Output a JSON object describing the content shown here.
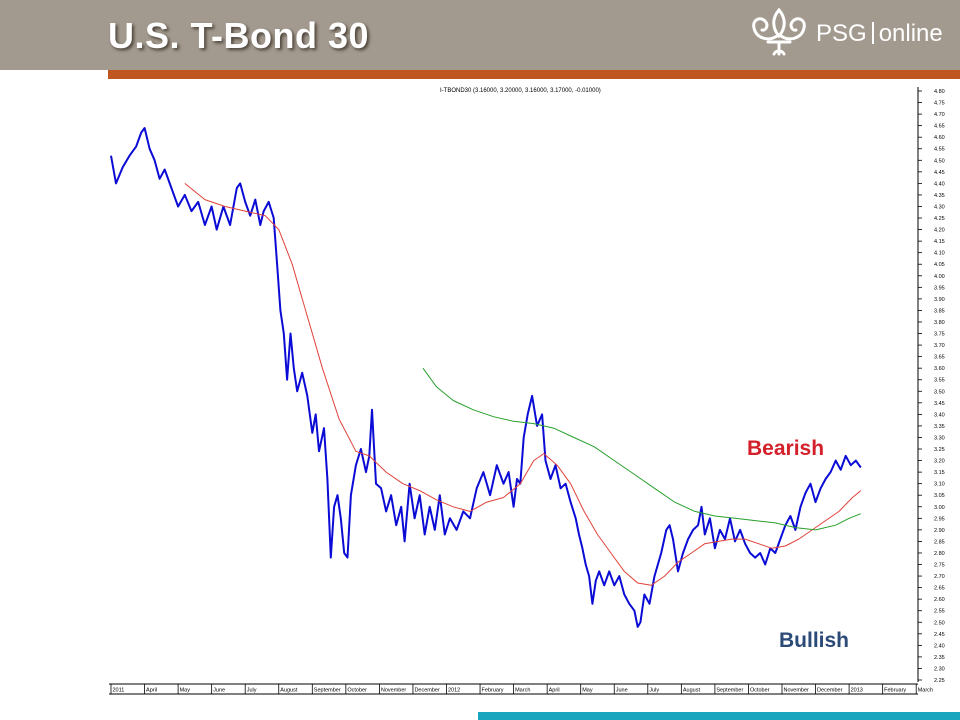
{
  "header": {
    "title": "U.S. T-Bond 30"
  },
  "logo": {
    "brand": "PSG",
    "suffix": "online"
  },
  "chart_header": "I-TBOND30 (3.16000, 3.20000, 3.16000, 3.17000, -0.01000)",
  "annotations": {
    "bearish": "Bearish",
    "bullish": "Bullish"
  },
  "colors": {
    "header_bg": "#a39a8f",
    "accent_line": "#c0561f",
    "price": "#0b0bd6",
    "ma_short": "#e0413a",
    "ma_long": "#27a02b",
    "bearish": "#d4202a",
    "bullish": "#2b4a78",
    "bottom_bar": "#1aa5be"
  },
  "chart_data": {
    "type": "line",
    "title": "I-TBOND30",
    "xlabel": "",
    "ylabel": "",
    "ylim": [
      2.25,
      4.8
    ],
    "y_ticks": [
      "4.80",
      "4.75",
      "4.70",
      "4.65",
      "4.60",
      "4.55",
      "4.50",
      "4.45",
      "4.40",
      "4.35",
      "4.30",
      "4.25",
      "4.20",
      "4.15",
      "4.10",
      "4.05",
      "4.00",
      "3.95",
      "3.90",
      "3.85",
      "3.80",
      "3.75",
      "3.70",
      "3.65",
      "3.60",
      "3.55",
      "3.50",
      "3.45",
      "3.40",
      "3.35",
      "3.30",
      "3.25",
      "3.20",
      "3.15",
      "3.10",
      "3.05",
      "3.00",
      "2.95",
      "2.90",
      "2.85",
      "2.80",
      "2.75",
      "2.70",
      "2.65",
      "2.60",
      "2.55",
      "2.50",
      "2.45",
      "2.40",
      "2.35",
      "2.30",
      "2.25"
    ],
    "x_ticks": [
      {
        "label": "2011",
        "m": 0
      },
      {
        "label": "April",
        "m": 1
      },
      {
        "label": "May",
        "m": 2
      },
      {
        "label": "June",
        "m": 3
      },
      {
        "label": "July",
        "m": 4
      },
      {
        "label": "August",
        "m": 5
      },
      {
        "label": "September",
        "m": 6
      },
      {
        "label": "October",
        "m": 7
      },
      {
        "label": "November",
        "m": 8
      },
      {
        "label": "December",
        "m": 9
      },
      {
        "label": "2012",
        "m": 10
      },
      {
        "label": "February",
        "m": 11
      },
      {
        "label": "March",
        "m": 12
      },
      {
        "label": "April",
        "m": 13
      },
      {
        "label": "May",
        "m": 14
      },
      {
        "label": "June",
        "m": 15
      },
      {
        "label": "July",
        "m": 16
      },
      {
        "label": "August",
        "m": 17
      },
      {
        "label": "September",
        "m": 18
      },
      {
        "label": "October",
        "m": 19
      },
      {
        "label": "November",
        "m": 20
      },
      {
        "label": "December",
        "m": 21
      },
      {
        "label": "2013",
        "m": 22
      },
      {
        "label": "February",
        "m": 23
      },
      {
        "label": "March",
        "m": 24
      }
    ],
    "series": [
      {
        "type": "price",
        "points": [
          [
            0,
            4.52
          ],
          [
            0.15,
            4.4
          ],
          [
            0.35,
            4.47
          ],
          [
            0.55,
            4.52
          ],
          [
            0.75,
            4.56
          ],
          [
            0.9,
            4.62
          ],
          [
            1.0,
            4.64
          ],
          [
            1.15,
            4.55
          ],
          [
            1.3,
            4.5
          ],
          [
            1.45,
            4.42
          ],
          [
            1.6,
            4.46
          ],
          [
            1.8,
            4.38
          ],
          [
            2.0,
            4.3
          ],
          [
            2.2,
            4.35
          ],
          [
            2.4,
            4.28
          ],
          [
            2.6,
            4.32
          ],
          [
            2.8,
            4.22
          ],
          [
            3.0,
            4.3
          ],
          [
            3.15,
            4.2
          ],
          [
            3.35,
            4.3
          ],
          [
            3.55,
            4.22
          ],
          [
            3.75,
            4.38
          ],
          [
            3.85,
            4.4
          ],
          [
            4.0,
            4.32
          ],
          [
            4.15,
            4.26
          ],
          [
            4.3,
            4.33
          ],
          [
            4.45,
            4.22
          ],
          [
            4.55,
            4.28
          ],
          [
            4.7,
            4.32
          ],
          [
            4.85,
            4.25
          ],
          [
            4.95,
            4.05
          ],
          [
            5.05,
            3.85
          ],
          [
            5.15,
            3.75
          ],
          [
            5.25,
            3.55
          ],
          [
            5.35,
            3.75
          ],
          [
            5.45,
            3.6
          ],
          [
            5.55,
            3.5
          ],
          [
            5.7,
            3.58
          ],
          [
            5.85,
            3.48
          ],
          [
            6.0,
            3.32
          ],
          [
            6.1,
            3.4
          ],
          [
            6.2,
            3.24
          ],
          [
            6.35,
            3.34
          ],
          [
            6.45,
            3.12
          ],
          [
            6.55,
            2.78
          ],
          [
            6.65,
            3.0
          ],
          [
            6.75,
            3.05
          ],
          [
            6.85,
            2.95
          ],
          [
            6.95,
            2.8
          ],
          [
            7.05,
            2.78
          ],
          [
            7.15,
            3.05
          ],
          [
            7.3,
            3.18
          ],
          [
            7.45,
            3.25
          ],
          [
            7.6,
            3.15
          ],
          [
            7.7,
            3.22
          ],
          [
            7.78,
            3.42
          ],
          [
            7.9,
            3.1
          ],
          [
            8.05,
            3.08
          ],
          [
            8.2,
            2.98
          ],
          [
            8.35,
            3.05
          ],
          [
            8.5,
            2.92
          ],
          [
            8.65,
            3.0
          ],
          [
            8.75,
            2.85
          ],
          [
            8.9,
            3.1
          ],
          [
            9.05,
            2.95
          ],
          [
            9.2,
            3.05
          ],
          [
            9.35,
            2.88
          ],
          [
            9.5,
            3.0
          ],
          [
            9.65,
            2.9
          ],
          [
            9.8,
            3.05
          ],
          [
            9.95,
            2.88
          ],
          [
            10.1,
            2.95
          ],
          [
            10.3,
            2.9
          ],
          [
            10.5,
            2.98
          ],
          [
            10.7,
            2.95
          ],
          [
            10.9,
            3.08
          ],
          [
            11.1,
            3.15
          ],
          [
            11.3,
            3.05
          ],
          [
            11.5,
            3.18
          ],
          [
            11.7,
            3.1
          ],
          [
            11.85,
            3.15
          ],
          [
            12.0,
            3.0
          ],
          [
            12.1,
            3.12
          ],
          [
            12.2,
            3.1
          ],
          [
            12.3,
            3.3
          ],
          [
            12.42,
            3.4
          ],
          [
            12.55,
            3.48
          ],
          [
            12.7,
            3.35
          ],
          [
            12.85,
            3.4
          ],
          [
            12.95,
            3.2
          ],
          [
            13.1,
            3.12
          ],
          [
            13.25,
            3.18
          ],
          [
            13.4,
            3.08
          ],
          [
            13.55,
            3.1
          ],
          [
            13.7,
            3.02
          ],
          [
            13.85,
            2.95
          ],
          [
            13.95,
            2.88
          ],
          [
            14.05,
            2.82
          ],
          [
            14.15,
            2.75
          ],
          [
            14.25,
            2.7
          ],
          [
            14.35,
            2.58
          ],
          [
            14.45,
            2.68
          ],
          [
            14.55,
            2.72
          ],
          [
            14.7,
            2.66
          ],
          [
            14.85,
            2.72
          ],
          [
            15.0,
            2.66
          ],
          [
            15.15,
            2.7
          ],
          [
            15.3,
            2.62
          ],
          [
            15.45,
            2.58
          ],
          [
            15.6,
            2.55
          ],
          [
            15.7,
            2.48
          ],
          [
            15.78,
            2.5
          ],
          [
            15.9,
            2.62
          ],
          [
            16.05,
            2.58
          ],
          [
            16.2,
            2.7
          ],
          [
            16.4,
            2.8
          ],
          [
            16.55,
            2.9
          ],
          [
            16.65,
            2.92
          ],
          [
            16.75,
            2.86
          ],
          [
            16.9,
            2.72
          ],
          [
            17.05,
            2.8
          ],
          [
            17.2,
            2.86
          ],
          [
            17.35,
            2.9
          ],
          [
            17.5,
            2.92
          ],
          [
            17.6,
            3.0
          ],
          [
            17.7,
            2.88
          ],
          [
            17.85,
            2.95
          ],
          [
            18.0,
            2.82
          ],
          [
            18.15,
            2.9
          ],
          [
            18.3,
            2.86
          ],
          [
            18.45,
            2.95
          ],
          [
            18.6,
            2.85
          ],
          [
            18.75,
            2.9
          ],
          [
            18.9,
            2.84
          ],
          [
            19.05,
            2.8
          ],
          [
            19.2,
            2.78
          ],
          [
            19.35,
            2.8
          ],
          [
            19.5,
            2.75
          ],
          [
            19.65,
            2.82
          ],
          [
            19.8,
            2.8
          ],
          [
            19.95,
            2.86
          ],
          [
            20.1,
            2.92
          ],
          [
            20.25,
            2.96
          ],
          [
            20.4,
            2.9
          ],
          [
            20.55,
            3.0
          ],
          [
            20.7,
            3.06
          ],
          [
            20.85,
            3.1
          ],
          [
            21.0,
            3.02
          ],
          [
            21.15,
            3.08
          ],
          [
            21.3,
            3.12
          ],
          [
            21.45,
            3.15
          ],
          [
            21.6,
            3.2
          ],
          [
            21.75,
            3.16
          ],
          [
            21.9,
            3.22
          ],
          [
            22.05,
            3.18
          ],
          [
            22.2,
            3.2
          ],
          [
            22.35,
            3.17
          ]
        ]
      },
      {
        "type": "moving-average-short",
        "points": [
          [
            2.2,
            4.4
          ],
          [
            2.8,
            4.33
          ],
          [
            3.4,
            4.3
          ],
          [
            4.0,
            4.28
          ],
          [
            4.6,
            4.26
          ],
          [
            5.0,
            4.2
          ],
          [
            5.4,
            4.05
          ],
          [
            5.8,
            3.85
          ],
          [
            6.3,
            3.6
          ],
          [
            6.8,
            3.38
          ],
          [
            7.3,
            3.24
          ],
          [
            7.7,
            3.22
          ],
          [
            8.2,
            3.15
          ],
          [
            8.7,
            3.1
          ],
          [
            9.2,
            3.07
          ],
          [
            9.7,
            3.03
          ],
          [
            10.2,
            3.0
          ],
          [
            10.7,
            2.98
          ],
          [
            11.2,
            3.02
          ],
          [
            11.7,
            3.04
          ],
          [
            12.2,
            3.1
          ],
          [
            12.6,
            3.2
          ],
          [
            12.9,
            3.23
          ],
          [
            13.3,
            3.18
          ],
          [
            13.7,
            3.1
          ],
          [
            14.1,
            2.98
          ],
          [
            14.5,
            2.88
          ],
          [
            14.9,
            2.8
          ],
          [
            15.3,
            2.72
          ],
          [
            15.7,
            2.67
          ],
          [
            16.1,
            2.66
          ],
          [
            16.5,
            2.7
          ],
          [
            16.9,
            2.76
          ],
          [
            17.3,
            2.8
          ],
          [
            17.7,
            2.84
          ],
          [
            18.1,
            2.85
          ],
          [
            18.5,
            2.86
          ],
          [
            18.9,
            2.86
          ],
          [
            19.3,
            2.84
          ],
          [
            19.7,
            2.82
          ],
          [
            20.1,
            2.83
          ],
          [
            20.5,
            2.86
          ],
          [
            20.9,
            2.9
          ],
          [
            21.3,
            2.94
          ],
          [
            21.7,
            2.98
          ],
          [
            22.1,
            3.04
          ],
          [
            22.35,
            3.07
          ]
        ]
      },
      {
        "type": "moving-average-long",
        "points": [
          [
            9.3,
            3.6
          ],
          [
            9.7,
            3.52
          ],
          [
            10.2,
            3.46
          ],
          [
            10.8,
            3.42
          ],
          [
            11.4,
            3.39
          ],
          [
            12.0,
            3.37
          ],
          [
            12.6,
            3.36
          ],
          [
            13.2,
            3.34
          ],
          [
            13.8,
            3.3
          ],
          [
            14.4,
            3.26
          ],
          [
            15.0,
            3.2
          ],
          [
            15.6,
            3.14
          ],
          [
            16.2,
            3.08
          ],
          [
            16.8,
            3.02
          ],
          [
            17.4,
            2.98
          ],
          [
            18.0,
            2.96
          ],
          [
            18.6,
            2.95
          ],
          [
            19.2,
            2.94
          ],
          [
            19.8,
            2.93
          ],
          [
            20.4,
            2.91
          ],
          [
            21.0,
            2.9
          ],
          [
            21.6,
            2.92
          ],
          [
            22.0,
            2.95
          ],
          [
            22.35,
            2.97
          ]
        ]
      }
    ]
  }
}
